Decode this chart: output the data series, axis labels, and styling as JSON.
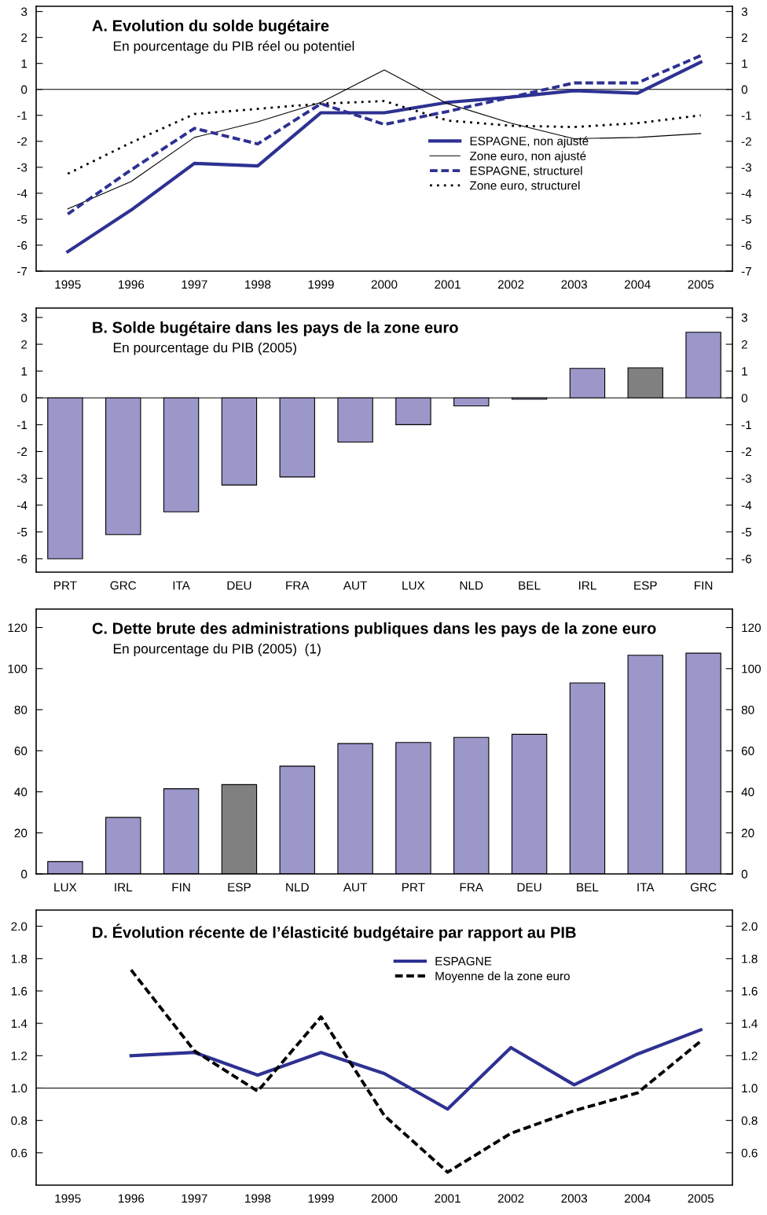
{
  "chart_data": [
    {
      "type": "line",
      "title": "A. Evolution du solde bugétaire",
      "subtitle": "En pourcentage du PIB réel ou potentiel",
      "categories": [
        "1995",
        "1996",
        "1997",
        "1998",
        "1999",
        "2000",
        "2001",
        "2002",
        "2003",
        "2004",
        "2005"
      ],
      "series": [
        {
          "name": "ESPAGNE, non ajusté",
          "color": "#2e3192",
          "line_style": "solid",
          "values": [
            -6.25,
            -4.65,
            -2.85,
            -2.95,
            -0.9,
            -0.9,
            -0.5,
            -0.3,
            -0.05,
            -0.15,
            1.05
          ]
        },
        {
          "name": "Zone euro, non ajusté",
          "color": "#000000",
          "line_style": "solid",
          "values": [
            -4.6,
            -3.55,
            -1.85,
            -1.25,
            -0.5,
            0.75,
            -0.55,
            -1.3,
            -1.9,
            -1.85,
            -1.7
          ]
        },
        {
          "name": "ESPAGNE, structurel",
          "color": "#2e3192",
          "line_style": "dashed",
          "values": [
            -4.8,
            -3.1,
            -1.5,
            -2.1,
            -0.55,
            -1.35,
            -0.85,
            -0.3,
            0.25,
            0.25,
            1.3
          ]
        },
        {
          "name": "Zone euro, structurel",
          "color": "#000000",
          "line_style": "dotted",
          "values": [
            -3.25,
            -2.05,
            -0.95,
            -0.75,
            -0.55,
            -0.45,
            -1.2,
            -1.4,
            -1.45,
            -1.3,
            -1.0
          ]
        }
      ],
      "ylim": [
        -7,
        3.2
      ],
      "yticks": [
        -7,
        -6,
        -5,
        -4,
        -3,
        -2,
        -1,
        0,
        1,
        2,
        3
      ],
      "y2lim": [
        -7,
        3.2
      ],
      "y2ticks": [
        -7,
        -6,
        -5,
        -4,
        -3,
        -2,
        -1,
        0,
        1,
        2,
        3
      ],
      "ref_lines": [
        {
          "axis": "y",
          "value": 0
        }
      ],
      "legend": "center right",
      "grid": false
    },
    {
      "type": "bar",
      "title": "B. Solde bugétaire dans les pays de la zone euro",
      "subtitle": "En pourcentage du PIB (2005)",
      "categories": [
        "PRT",
        "GRC",
        "ITA",
        "DEU",
        "FRA",
        "AUT",
        "LUX",
        "NLD",
        "BEL",
        "IRL",
        "ESP",
        "FIN"
      ],
      "values": [
        -6.0,
        -5.1,
        -4.25,
        -3.25,
        -2.95,
        -1.65,
        -1.0,
        -0.3,
        -0.05,
        1.1,
        1.12,
        2.45
      ],
      "colors": [
        "#9b97c9",
        "#9b97c9",
        "#9b97c9",
        "#9b97c9",
        "#9b97c9",
        "#9b97c9",
        "#9b97c9",
        "#9b97c9",
        "#9b97c9",
        "#9b97c9",
        "#808080",
        "#9b97c9"
      ],
      "ylim": [
        -6.5,
        3.35
      ],
      "yticks": [
        -6,
        -5,
        -4,
        -3,
        -2,
        -1,
        0,
        1,
        2,
        3
      ],
      "y2lim": [
        -6.5,
        3.35
      ],
      "y2ticks": [
        -6,
        -5,
        -4,
        -3,
        -2,
        -1,
        0,
        1,
        2,
        3
      ],
      "ref_lines": [
        {
          "axis": "y",
          "value": 0
        }
      ],
      "grid": false
    },
    {
      "type": "bar",
      "title": "C. Dette brute des administrations publiques dans les pays de la zone euro",
      "subtitle": "En pourcentage du PIB (2005)  (1)",
      "categories": [
        "LUX",
        "IRL",
        "FIN",
        "ESP",
        "NLD",
        "AUT",
        "PRT",
        "FRA",
        "DEU",
        "BEL",
        "ITA",
        "GRC"
      ],
      "values": [
        6,
        27.5,
        41.5,
        43.5,
        52.5,
        63.5,
        64,
        66.5,
        68,
        93,
        106.5,
        107.5
      ],
      "colors": [
        "#9b97c9",
        "#9b97c9",
        "#9b97c9",
        "#808080",
        "#9b97c9",
        "#9b97c9",
        "#9b97c9",
        "#9b97c9",
        "#9b97c9",
        "#9b97c9",
        "#9b97c9",
        "#9b97c9"
      ],
      "ylim": [
        0,
        129
      ],
      "yticks": [
        0,
        20,
        40,
        60,
        80,
        100,
        120
      ],
      "y2lim": [
        0,
        129
      ],
      "y2ticks": [
        0,
        20,
        40,
        60,
        80,
        100,
        120
      ],
      "grid": false
    },
    {
      "type": "line",
      "title": "D. Évolution récente de l’élasticité budgétaire par rapport au PIB",
      "categories": [
        "1995",
        "1996",
        "1997",
        "1998",
        "1999",
        "2000",
        "2001",
        "2002",
        "2003",
        "2004",
        "2005"
      ],
      "series": [
        {
          "name": "ESPAGNE",
          "color": "#2e3192",
          "line_style": "solid",
          "values": [
            null,
            1.2,
            1.22,
            1.08,
            1.22,
            1.09,
            0.87,
            1.25,
            1.02,
            1.21,
            1.36
          ]
        },
        {
          "name": "Moyenne de la zone euro",
          "color": "#000000",
          "line_style": "dashed",
          "values": [
            null,
            1.73,
            1.23,
            0.98,
            1.44,
            0.83,
            0.48,
            0.72,
            0.86,
            0.97,
            1.29
          ]
        }
      ],
      "ylim": [
        0.4,
        2.1
      ],
      "yticks": [
        {
          "value": 0.6,
          "label": "0.6"
        },
        {
          "value": 0.8,
          "label": "0.8"
        },
        {
          "value": 1.0,
          "label": "1.0"
        },
        {
          "value": 1.2,
          "label": "1.2"
        },
        {
          "value": 1.4,
          "label": "1.4"
        },
        {
          "value": 1.6,
          "label": "1.6"
        },
        {
          "value": 1.8,
          "label": "1.8"
        },
        {
          "value": 2.0,
          "label": "2.0"
        }
      ],
      "y2lim": [
        0.4,
        2.1
      ],
      "y2ticks": [
        {
          "value": 0.6,
          "label": "0.6"
        },
        {
          "value": 0.8,
          "label": "0.8"
        },
        {
          "value": 1.0,
          "label": "1.0"
        },
        {
          "value": 1.2,
          "label": "1.2"
        },
        {
          "value": 1.4,
          "label": "1.4"
        },
        {
          "value": 1.6,
          "label": "1.6"
        },
        {
          "value": 1.8,
          "label": "1.8"
        },
        {
          "value": 2.0,
          "label": "2.0"
        }
      ],
      "ref_lines": [
        {
          "axis": "y",
          "value": 1.0
        }
      ],
      "legend": "upper center",
      "grid": false
    }
  ]
}
